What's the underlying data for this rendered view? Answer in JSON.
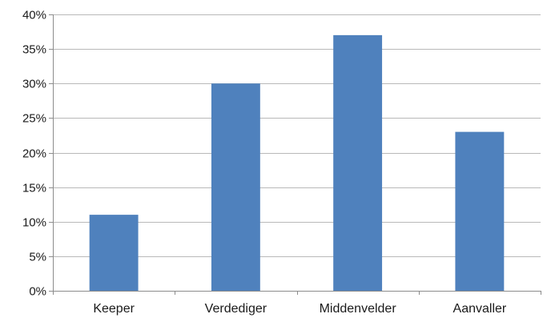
{
  "chart_data": {
    "type": "bar",
    "categories": [
      "Keeper",
      "Verdediger",
      "Middenvelder",
      "Aanvaller"
    ],
    "values": [
      11,
      30,
      37,
      23
    ],
    "y_unit": "%",
    "ylim": [
      0,
      40
    ],
    "y_ticks": [
      0,
      5,
      10,
      15,
      20,
      25,
      30,
      35,
      40
    ],
    "y_tick_labels": [
      "0%",
      "5%",
      "10%",
      "15%",
      "20%",
      "25%",
      "30%",
      "35%",
      "40%"
    ],
    "grid": true,
    "legend": "none",
    "bar_color": "#4f81bd",
    "grid_color": "#b9b9b9"
  }
}
